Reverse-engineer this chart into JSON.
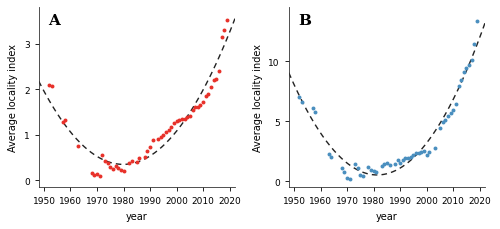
{
  "panel_A": {
    "label": "A",
    "scatter_color": "#E8312A",
    "xlabel": "year",
    "ylabel": "Average locality index",
    "xlim": [
      1948,
      2022
    ],
    "ylim": [
      -0.15,
      3.8
    ],
    "xticks": [
      1950,
      1960,
      1970,
      1980,
      1990,
      2000,
      2010,
      2020
    ],
    "yticks": [
      0,
      1,
      2,
      3
    ],
    "points": [
      [
        1952,
        2.1
      ],
      [
        1953,
        2.07
      ],
      [
        1957,
        1.27
      ],
      [
        1958,
        1.32
      ],
      [
        1963,
        0.75
      ],
      [
        1968,
        0.15
      ],
      [
        1969,
        0.12
      ],
      [
        1970,
        0.14
      ],
      [
        1971,
        0.1
      ],
      [
        1972,
        0.55
      ],
      [
        1973,
        0.42
      ],
      [
        1974,
        0.38
      ],
      [
        1975,
        0.3
      ],
      [
        1976,
        0.25
      ],
      [
        1977,
        0.32
      ],
      [
        1978,
        0.28
      ],
      [
        1979,
        0.22
      ],
      [
        1980,
        0.2
      ],
      [
        1982,
        0.38
      ],
      [
        1983,
        0.42
      ],
      [
        1985,
        0.4
      ],
      [
        1986,
        0.48
      ],
      [
        1988,
        0.52
      ],
      [
        1989,
        0.65
      ],
      [
        1990,
        0.72
      ],
      [
        1991,
        0.88
      ],
      [
        1993,
        0.9
      ],
      [
        1994,
        0.95
      ],
      [
        1995,
        1.0
      ],
      [
        1996,
        1.05
      ],
      [
        1997,
        1.1
      ],
      [
        1998,
        1.18
      ],
      [
        1999,
        1.25
      ],
      [
        2000,
        1.3
      ],
      [
        2001,
        1.32
      ],
      [
        2002,
        1.35
      ],
      [
        2003,
        1.35
      ],
      [
        2004,
        1.4
      ],
      [
        2005,
        1.42
      ],
      [
        2006,
        1.55
      ],
      [
        2007,
        1.62
      ],
      [
        2008,
        1.6
      ],
      [
        2009,
        1.65
      ],
      [
        2010,
        1.72
      ],
      [
        2011,
        1.85
      ],
      [
        2012,
        1.9
      ],
      [
        2013,
        2.05
      ],
      [
        2014,
        2.2
      ],
      [
        2015,
        2.22
      ],
      [
        2016,
        2.4
      ],
      [
        2017,
        3.15
      ],
      [
        2018,
        3.3
      ],
      [
        2019,
        3.52
      ]
    ],
    "quad_fit_x": [
      1952,
      1953,
      1957,
      1958,
      1963,
      1968,
      1969,
      1970,
      1971,
      1972,
      1973,
      1974,
      1975,
      1976,
      1977,
      1978,
      1979,
      1980,
      1982,
      1983,
      1985,
      1986,
      1988,
      1989,
      1990,
      1991,
      1993,
      1994,
      1995,
      1996,
      1997,
      1998,
      1999,
      2000,
      2001,
      2002,
      2003,
      2004,
      2005,
      2006,
      2007,
      2008,
      2009,
      2010,
      2011,
      2012,
      2013,
      2014,
      2015,
      2016,
      2017,
      2018,
      2019
    ],
    "quad_fit_y": [
      2.1,
      2.07,
      1.27,
      1.32,
      0.75,
      0.15,
      0.12,
      0.14,
      0.1,
      0.55,
      0.42,
      0.38,
      0.3,
      0.25,
      0.32,
      0.28,
      0.22,
      0.2,
      0.38,
      0.42,
      0.4,
      0.48,
      0.52,
      0.65,
      0.72,
      0.88,
      0.9,
      0.95,
      1.0,
      1.05,
      1.1,
      1.18,
      1.25,
      1.3,
      1.32,
      1.35,
      1.35,
      1.4,
      1.42,
      1.55,
      1.62,
      1.6,
      1.65,
      1.72,
      1.85,
      1.9,
      2.05,
      2.2,
      2.22,
      2.4,
      3.15,
      3.3,
      3.52
    ]
  },
  "panel_B": {
    "label": "B",
    "scatter_color": "#4A8FBF",
    "xlabel": "year",
    "ylabel": "Average locality index",
    "xlim": [
      1948,
      2022
    ],
    "ylim": [
      -0.5,
      14.5
    ],
    "xticks": [
      1950,
      1960,
      1970,
      1980,
      1990,
      2000,
      2010,
      2020
    ],
    "yticks": [
      0,
      5,
      10
    ],
    "points": [
      [
        1952,
        7.0
      ],
      [
        1953,
        6.6
      ],
      [
        1957,
        6.1
      ],
      [
        1958,
        5.8
      ],
      [
        1963,
        2.3
      ],
      [
        1964,
        2.0
      ],
      [
        1968,
        1.1
      ],
      [
        1969,
        0.8
      ],
      [
        1970,
        0.25
      ],
      [
        1971,
        0.15
      ],
      [
        1973,
        1.4
      ],
      [
        1974,
        1.1
      ],
      [
        1975,
        0.55
      ],
      [
        1976,
        0.45
      ],
      [
        1978,
        1.15
      ],
      [
        1979,
        0.9
      ],
      [
        1980,
        0.85
      ],
      [
        1981,
        0.75
      ],
      [
        1983,
        1.3
      ],
      [
        1984,
        1.45
      ],
      [
        1985,
        1.55
      ],
      [
        1986,
        1.35
      ],
      [
        1988,
        1.45
      ],
      [
        1989,
        1.75
      ],
      [
        1990,
        1.55
      ],
      [
        1991,
        1.75
      ],
      [
        1992,
        1.95
      ],
      [
        1993,
        1.95
      ],
      [
        1994,
        2.05
      ],
      [
        1995,
        2.15
      ],
      [
        1996,
        2.35
      ],
      [
        1997,
        2.35
      ],
      [
        1998,
        2.45
      ],
      [
        1999,
        2.55
      ],
      [
        2000,
        2.15
      ],
      [
        2001,
        2.45
      ],
      [
        2003,
        2.75
      ],
      [
        2005,
        4.4
      ],
      [
        2006,
        4.9
      ],
      [
        2007,
        5.1
      ],
      [
        2008,
        5.4
      ],
      [
        2009,
        5.7
      ],
      [
        2010,
        5.9
      ],
      [
        2011,
        6.4
      ],
      [
        2012,
        7.9
      ],
      [
        2013,
        8.4
      ],
      [
        2014,
        9.1
      ],
      [
        2015,
        9.4
      ],
      [
        2016,
        9.7
      ],
      [
        2017,
        10.1
      ],
      [
        2018,
        11.4
      ],
      [
        2019,
        13.4
      ]
    ],
    "quad_fit_x": [
      1952,
      1953,
      1957,
      1958,
      1963,
      1964,
      1968,
      1969,
      1970,
      1971,
      1973,
      1974,
      1975,
      1976,
      1978,
      1979,
      1980,
      1981,
      1983,
      1984,
      1985,
      1986,
      1988,
      1989,
      1990,
      1991,
      1992,
      1993,
      1994,
      1995,
      1996,
      1997,
      1998,
      1999,
      2000,
      2001,
      2003,
      2005,
      2006,
      2007,
      2008,
      2009,
      2010,
      2011,
      2012,
      2013,
      2014,
      2015,
      2016,
      2017,
      2018,
      2019
    ],
    "quad_fit_y": [
      7.0,
      6.6,
      6.1,
      5.8,
      2.3,
      2.0,
      1.1,
      0.8,
      0.25,
      0.15,
      1.4,
      1.1,
      0.55,
      0.45,
      1.15,
      0.9,
      0.85,
      0.75,
      1.3,
      1.45,
      1.55,
      1.35,
      1.45,
      1.75,
      1.55,
      1.75,
      1.95,
      1.95,
      2.05,
      2.15,
      2.35,
      2.35,
      2.45,
      2.55,
      2.15,
      2.45,
      2.75,
      4.4,
      4.9,
      5.1,
      5.4,
      5.7,
      5.9,
      6.4,
      7.9,
      8.4,
      9.1,
      9.4,
      9.7,
      10.1,
      11.4,
      13.4
    ]
  },
  "background_color": "#ffffff",
  "curve_color": "#222222",
  "curve_lw": 1.0,
  "scatter_size": 8,
  "label_fontsize": 7.0,
  "tick_fontsize": 6.5,
  "panel_label_fontsize": 11
}
